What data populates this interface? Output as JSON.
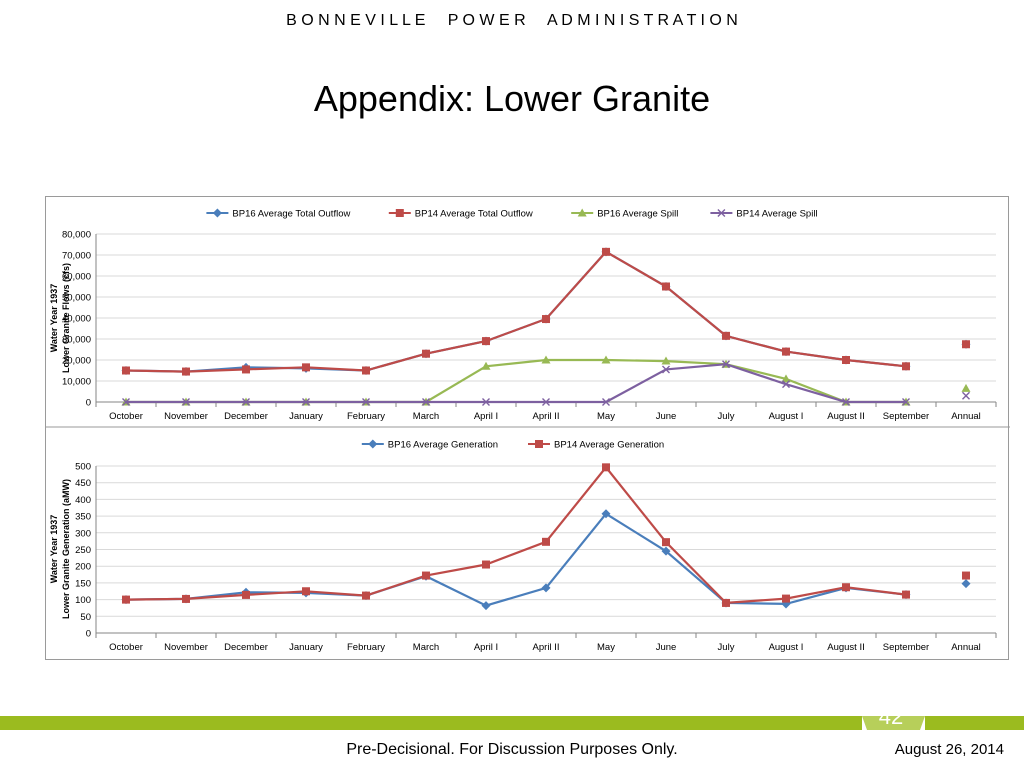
{
  "header": {
    "organization": "B O N N E V I L L E     P O W E R     A D M I N I S T R A T I O N",
    "title": "Appendix:  Lower Granite"
  },
  "footer": {
    "page_number": "42",
    "disclaimer": "Pre-Decisional.  For Discussion Purposes Only.",
    "date": "August 26, 2014",
    "bar_color": "#9bbb1f"
  },
  "chart_data": [
    {
      "type": "line",
      "title": "",
      "ylabel": "Water Year 1937\nLower Granite Flows (cfs)",
      "ylim": [
        0,
        80000
      ],
      "yticks": [
        0,
        10000,
        20000,
        30000,
        40000,
        50000,
        60000,
        70000,
        80000
      ],
      "ytick_labels": [
        "0",
        "10,000",
        "20,000",
        "30,000",
        "40,000",
        "50,000",
        "60,000",
        "70,000",
        "80,000"
      ],
      "categories": [
        "October",
        "November",
        "December",
        "January",
        "February",
        "March",
        "April I",
        "April II",
        "May",
        "June",
        "July",
        "August I",
        "August II",
        "September",
        "Annual"
      ],
      "grid": true,
      "legend": "top",
      "series": [
        {
          "name": "BP16 Average Total Outflow",
          "color": "#4a7ebb",
          "marker": "diamond",
          "values": [
            15000,
            14500,
            16500,
            16000,
            15000,
            23000,
            29000,
            39500,
            71500,
            55000,
            31500,
            24000,
            20000,
            17000,
            27500
          ]
        },
        {
          "name": "BP14 Average Total Outflow",
          "color": "#be4b48",
          "marker": "square",
          "values": [
            15000,
            14500,
            15500,
            16500,
            15000,
            23000,
            29000,
            39500,
            71500,
            55000,
            31500,
            24000,
            20000,
            17000,
            27500
          ]
        },
        {
          "name": "BP16 Average Spill",
          "color": "#98b954",
          "marker": "triangle",
          "values": [
            0,
            0,
            0,
            0,
            0,
            0,
            17000,
            20000,
            20000,
            19500,
            18000,
            11000,
            0,
            0,
            6500
          ]
        },
        {
          "name": "BP14 Average Spill",
          "color": "#7d60a0",
          "marker": "x",
          "values": [
            0,
            0,
            0,
            0,
            0,
            0,
            0,
            0,
            0,
            15500,
            18000,
            8500,
            0,
            0,
            3000
          ]
        }
      ]
    },
    {
      "type": "line",
      "title": "",
      "ylabel": "Water Year 1937\nLower Granite Generation (aMW)",
      "ylim": [
        0,
        500
      ],
      "yticks": [
        0,
        50,
        100,
        150,
        200,
        250,
        300,
        350,
        400,
        450,
        500
      ],
      "ytick_labels": [
        "0",
        "50",
        "100",
        "150",
        "200",
        "250",
        "300",
        "350",
        "400",
        "450",
        "500"
      ],
      "categories": [
        "October",
        "November",
        "December",
        "January",
        "February",
        "March",
        "April I",
        "April II",
        "May",
        "June",
        "July",
        "August I",
        "August II",
        "September",
        "Annual"
      ],
      "grid": true,
      "legend": "top",
      "series": [
        {
          "name": "BP16 Average Generation",
          "color": "#4a7ebb",
          "marker": "diamond",
          "values": [
            100,
            102,
            122,
            120,
            112,
            170,
            82,
            135,
            357,
            245,
            90,
            87,
            135,
            115,
            148
          ]
        },
        {
          "name": "BP14 Average Generation",
          "color": "#be4b48",
          "marker": "square",
          "values": [
            100,
            102,
            114,
            125,
            112,
            172,
            205,
            273,
            496,
            272,
            90,
            103,
            137,
            115,
            172
          ]
        }
      ]
    }
  ]
}
